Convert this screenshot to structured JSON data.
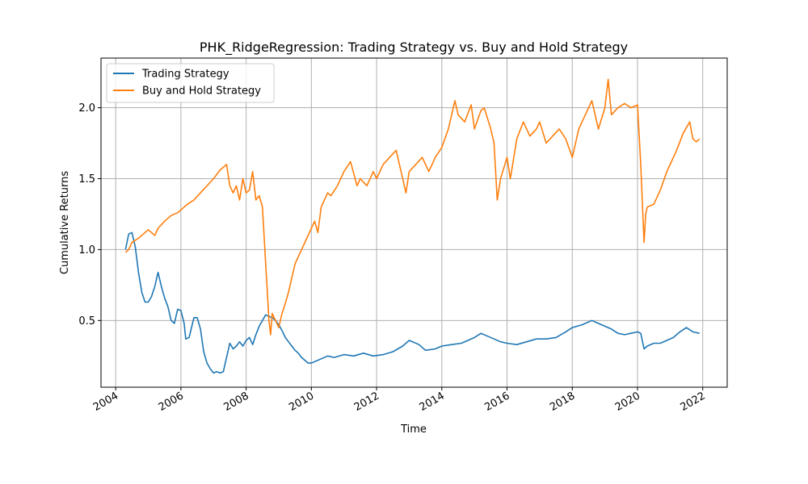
{
  "chart_data": {
    "type": "line",
    "title": "PHK_RidgeRegression: Trading Strategy vs. Buy and Hold Strategy",
    "xlabel": "Time",
    "ylabel": "Cumulative Returns",
    "x_ticks": [
      "2004",
      "2006",
      "2008",
      "2010",
      "2012",
      "2014",
      "2016",
      "2018",
      "2020",
      "2022"
    ],
    "y_ticks": [
      "0.5",
      "1.0",
      "1.5",
      "2.0"
    ],
    "xlim": [
      2003.55,
      2022.75
    ],
    "ylim": [
      0.03,
      2.35
    ],
    "grid": true,
    "legend_position": "upper left",
    "series": [
      {
        "name": "Trading Strategy",
        "color": "#1f77b4",
        "x": [
          2004.3,
          2004.4,
          2004.5,
          2004.6,
          2004.7,
          2004.8,
          2004.9,
          2005.0,
          2005.1,
          2005.2,
          2005.3,
          2005.4,
          2005.5,
          2005.6,
          2005.7,
          2005.8,
          2005.9,
          2006.0,
          2006.1,
          2006.15,
          2006.25,
          2006.4,
          2006.5,
          2006.6,
          2006.7,
          2006.8,
          2006.9,
          2007.0,
          2007.1,
          2007.2,
          2007.3,
          2007.4,
          2007.5,
          2007.6,
          2007.7,
          2007.8,
          2007.9,
          2008.0,
          2008.1,
          2008.2,
          2008.3,
          2008.4,
          2008.5,
          2008.6,
          2008.7,
          2008.8,
          2008.9,
          2009.0,
          2009.1,
          2009.2,
          2009.3,
          2009.4,
          2009.5,
          2009.6,
          2009.7,
          2009.8,
          2009.9,
          2010.0,
          2010.1,
          2010.2,
          2010.3,
          2010.5,
          2010.7,
          2011.0,
          2011.3,
          2011.6,
          2011.9,
          2012.2,
          2012.5,
          2012.8,
          2013.0,
          2013.3,
          2013.5,
          2013.8,
          2014.0,
          2014.3,
          2014.6,
          2014.8,
          2015.0,
          2015.2,
          2015.4,
          2015.6,
          2015.8,
          2016.0,
          2016.3,
          2016.6,
          2016.9,
          2017.2,
          2017.5,
          2017.8,
          2018.0,
          2018.3,
          2018.6,
          2018.8,
          2019.0,
          2019.2,
          2019.4,
          2019.6,
          2019.8,
          2020.0,
          2020.1,
          2020.2,
          2020.3,
          2020.5,
          2020.7,
          2020.9,
          2021.1,
          2021.3,
          2021.5,
          2021.7,
          2021.9
        ],
        "values": [
          1.0,
          1.11,
          1.12,
          1.02,
          0.84,
          0.7,
          0.63,
          0.63,
          0.67,
          0.74,
          0.84,
          0.74,
          0.66,
          0.6,
          0.5,
          0.48,
          0.58,
          0.57,
          0.48,
          0.37,
          0.38,
          0.52,
          0.52,
          0.44,
          0.28,
          0.2,
          0.16,
          0.13,
          0.14,
          0.13,
          0.14,
          0.24,
          0.34,
          0.3,
          0.32,
          0.35,
          0.32,
          0.36,
          0.38,
          0.33,
          0.4,
          0.46,
          0.5,
          0.54,
          0.53,
          0.52,
          0.5,
          0.47,
          0.43,
          0.38,
          0.35,
          0.32,
          0.29,
          0.27,
          0.24,
          0.22,
          0.2,
          0.2,
          0.21,
          0.22,
          0.23,
          0.25,
          0.24,
          0.26,
          0.25,
          0.27,
          0.25,
          0.26,
          0.28,
          0.32,
          0.36,
          0.33,
          0.29,
          0.3,
          0.32,
          0.33,
          0.34,
          0.36,
          0.38,
          0.41,
          0.39,
          0.37,
          0.35,
          0.34,
          0.33,
          0.35,
          0.37,
          0.37,
          0.38,
          0.42,
          0.45,
          0.47,
          0.5,
          0.48,
          0.46,
          0.44,
          0.41,
          0.4,
          0.41,
          0.42,
          0.41,
          0.3,
          0.32,
          0.34,
          0.34,
          0.36,
          0.38,
          0.42,
          0.45,
          0.42,
          0.41
        ]
      },
      {
        "name": "Buy and Hold Strategy",
        "color": "#ff7f0e",
        "x": [
          2004.3,
          2004.4,
          2004.5,
          2004.7,
          2004.9,
          2005.0,
          2005.2,
          2005.3,
          2005.5,
          2005.7,
          2005.9,
          2006.0,
          2006.2,
          2006.4,
          2006.6,
          2006.8,
          2007.0,
          2007.2,
          2007.4,
          2007.5,
          2007.6,
          2007.7,
          2007.8,
          2007.9,
          2008.0,
          2008.1,
          2008.2,
          2008.3,
          2008.4,
          2008.5,
          2008.6,
          2008.7,
          2008.75,
          2008.8,
          2008.9,
          2009.0,
          2009.1,
          2009.2,
          2009.3,
          2009.4,
          2009.5,
          2009.6,
          2009.7,
          2009.8,
          2009.9,
          2010.0,
          2010.1,
          2010.2,
          2010.3,
          2010.4,
          2010.5,
          2010.6,
          2010.8,
          2011.0,
          2011.2,
          2011.4,
          2011.5,
          2011.7,
          2011.9,
          2012.0,
          2012.2,
          2012.4,
          2012.6,
          2012.8,
          2012.9,
          2013.0,
          2013.2,
          2013.4,
          2013.6,
          2013.8,
          2014.0,
          2014.2,
          2014.4,
          2014.5,
          2014.7,
          2014.9,
          2015.0,
          2015.2,
          2015.3,
          2015.5,
          2015.6,
          2015.7,
          2015.8,
          2016.0,
          2016.1,
          2016.3,
          2016.5,
          2016.7,
          2016.9,
          2017.0,
          2017.2,
          2017.4,
          2017.6,
          2017.8,
          2018.0,
          2018.2,
          2018.4,
          2018.6,
          2018.8,
          2019.0,
          2019.1,
          2019.2,
          2019.4,
          2019.6,
          2019.8,
          2020.0,
          2020.1,
          2020.2,
          2020.25,
          2020.3,
          2020.5,
          2020.7,
          2020.9,
          2021.0,
          2021.2,
          2021.4,
          2021.6,
          2021.7,
          2021.8,
          2021.9
        ],
        "values": [
          0.98,
          1.0,
          1.05,
          1.08,
          1.12,
          1.14,
          1.1,
          1.15,
          1.2,
          1.24,
          1.26,
          1.28,
          1.32,
          1.35,
          1.4,
          1.45,
          1.5,
          1.56,
          1.6,
          1.45,
          1.4,
          1.45,
          1.35,
          1.5,
          1.4,
          1.42,
          1.55,
          1.35,
          1.38,
          1.3,
          0.9,
          0.5,
          0.4,
          0.55,
          0.5,
          0.45,
          0.55,
          0.62,
          0.7,
          0.8,
          0.9,
          0.95,
          1.0,
          1.05,
          1.1,
          1.15,
          1.2,
          1.12,
          1.3,
          1.35,
          1.4,
          1.38,
          1.45,
          1.55,
          1.62,
          1.45,
          1.5,
          1.45,
          1.55,
          1.5,
          1.6,
          1.65,
          1.7,
          1.5,
          1.4,
          1.55,
          1.6,
          1.65,
          1.55,
          1.65,
          1.72,
          1.85,
          2.05,
          1.95,
          1.9,
          2.02,
          1.85,
          1.98,
          2.0,
          1.85,
          1.75,
          1.35,
          1.5,
          1.65,
          1.5,
          1.78,
          1.9,
          1.8,
          1.85,
          1.9,
          1.75,
          1.8,
          1.85,
          1.78,
          1.65,
          1.85,
          1.95,
          2.05,
          1.85,
          2.0,
          2.2,
          1.95,
          2.0,
          2.03,
          2.0,
          2.02,
          1.6,
          1.05,
          1.25,
          1.3,
          1.32,
          1.42,
          1.55,
          1.6,
          1.7,
          1.82,
          1.9,
          1.78,
          1.76,
          1.78
        ]
      }
    ]
  }
}
